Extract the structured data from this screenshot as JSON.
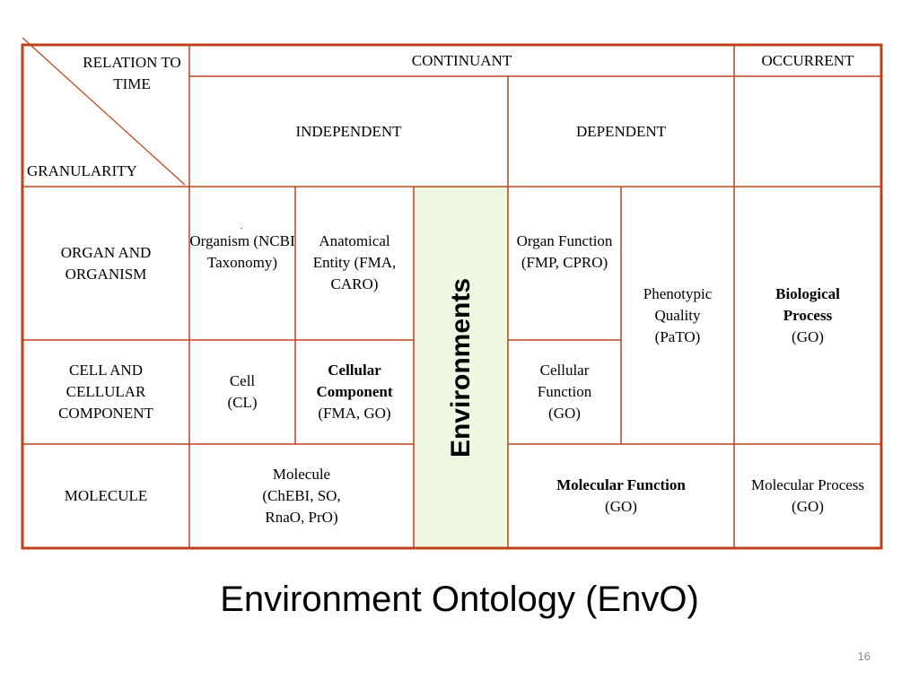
{
  "table": {
    "corner": {
      "relation": "RELATION TO TIME",
      "granularity": "GRANULARITY"
    },
    "headers": {
      "continuant": "CONTINUANT",
      "occurrent": "OCCURRENT",
      "independent": "INDEPENDENT",
      "dependent": "DEPENDENT"
    },
    "rows": {
      "organ": {
        "label": "ORGAN AND ORGANISM",
        "organism": "Organism (NCBI Taxonomy)",
        "anatomical": "Anatomical Entity (FMA, CARO)",
        "organ_function": "Organ Function (FMP, CPRO)"
      },
      "cell": {
        "label": "CELL AND CELLULAR COMPONENT",
        "cell_line1": "Cell",
        "cell_line2": "(CL)",
        "cc_line1": "Cellular",
        "cc_line2": "Component",
        "cc_line3": "(FMA, GO)",
        "cellular_function": "Cellular Function (GO)"
      },
      "molecule": {
        "label": "MOLECULE",
        "molecule": "Molecule (ChEBI, SO, RnaO, PrO)",
        "mf_line1": "Molecular Function",
        "mf_line2": "(GO)",
        "mp_line1": "Molecular Process",
        "mp_line2": "(GO)"
      }
    },
    "phenotypic": "Phenotypic Quality (PaTO)",
    "bio_line1": "Biological",
    "bio_line2": "Process",
    "bio_line3": "(GO)",
    "environments": "Environments",
    "dot": "."
  },
  "colors": {
    "grid": "#c0401c",
    "env_fill": "#eef7e2"
  },
  "slide": {
    "title": "Environment Ontology (EnvO)",
    "page_number": "16"
  }
}
